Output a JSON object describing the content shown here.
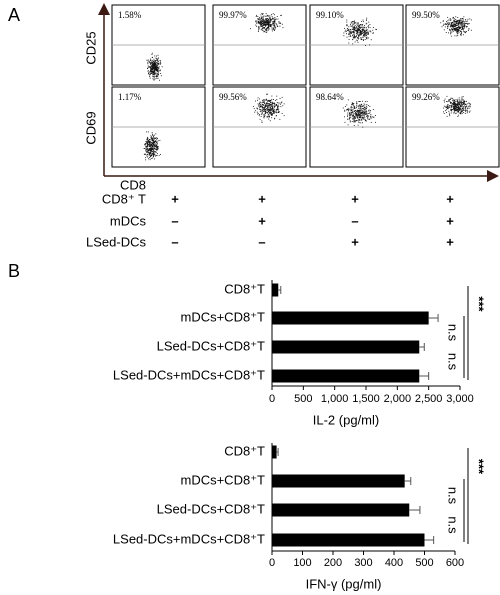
{
  "panel_a": {
    "label": "A",
    "y_labels": [
      "CD25",
      "CD69"
    ],
    "x_label": "CD8",
    "percentages": [
      [
        "1.58%",
        "99.97%",
        "99.10%",
        "99.50%"
      ],
      [
        "1.17%",
        "99.56%",
        "98.64%",
        "99.26%"
      ]
    ],
    "conditions": [
      {
        "name": "CD8⁺ T",
        "signs": [
          "+",
          "+",
          "+",
          "+"
        ]
      },
      {
        "name": "mDCs",
        "signs": [
          "–",
          "+",
          "–",
          "+"
        ]
      },
      {
        "name": "LSed-DCs",
        "signs": [
          "–",
          "–",
          "+",
          "+"
        ]
      }
    ]
  },
  "panel_b_label": "B",
  "chart_data": [
    {
      "type": "bar",
      "orientation": "horizontal",
      "x_label": "IL-2 (pg/ml)",
      "categories": [
        "CD8⁺T",
        "mDCs+CD8⁺T",
        "LSed-DCs+CD8⁺T",
        "LSed-DCs+mDCs+CD8⁺T"
      ],
      "values": [
        100,
        2500,
        2350,
        2350
      ],
      "errors": [
        40,
        150,
        80,
        150
      ],
      "color": "#000000",
      "xlim": [
        0,
        3000
      ],
      "xticks": [
        0,
        500,
        {
          "value": 1000,
          "label": "1,000"
        },
        {
          "value": 1500,
          "label": "1,500"
        },
        {
          "value": 2000,
          "label": "2,000"
        },
        {
          "value": 2500,
          "label": "2,500"
        },
        {
          "value": 3000,
          "label": "3,000"
        }
      ],
      "annotations": [
        "***",
        "n.s",
        "n.s"
      ]
    },
    {
      "type": "bar",
      "orientation": "horizontal",
      "x_label": "IFN-γ (pg/ml)",
      "categories": [
        "CD8⁺T",
        "mDCs+CD8⁺T",
        "LSed-DCs+CD8⁺T",
        "LSed-DCs+mDCs+CD8⁺T"
      ],
      "values": [
        15,
        435,
        450,
        500
      ],
      "errors": [
        5,
        20,
        35,
        30
      ],
      "color": "#000000",
      "xlim": [
        0,
        600
      ],
      "xticks": [
        0,
        100,
        200,
        300,
        400,
        500,
        600
      ],
      "annotations": [
        "***",
        "n.s",
        "n.s"
      ]
    }
  ]
}
